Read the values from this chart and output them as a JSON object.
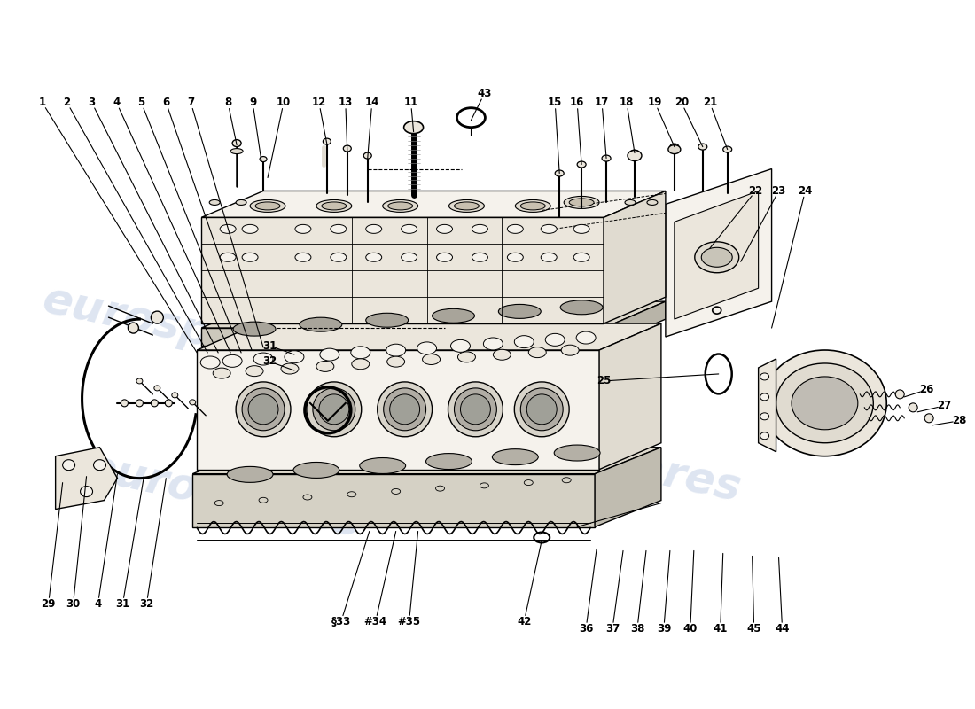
{
  "background_color": "#ffffff",
  "line_color": "#000000",
  "watermark_color": "#c8d4e8",
  "watermark_text": "eurospares",
  "fig_width": 11.0,
  "fig_height": 8.0,
  "dpi": 100,
  "part_fill": "#f5f2ec",
  "part_fill_dark": "#e0dbd0",
  "part_fill_mid": "#ebe6dc",
  "gasket_fill": "#ddd8cc"
}
